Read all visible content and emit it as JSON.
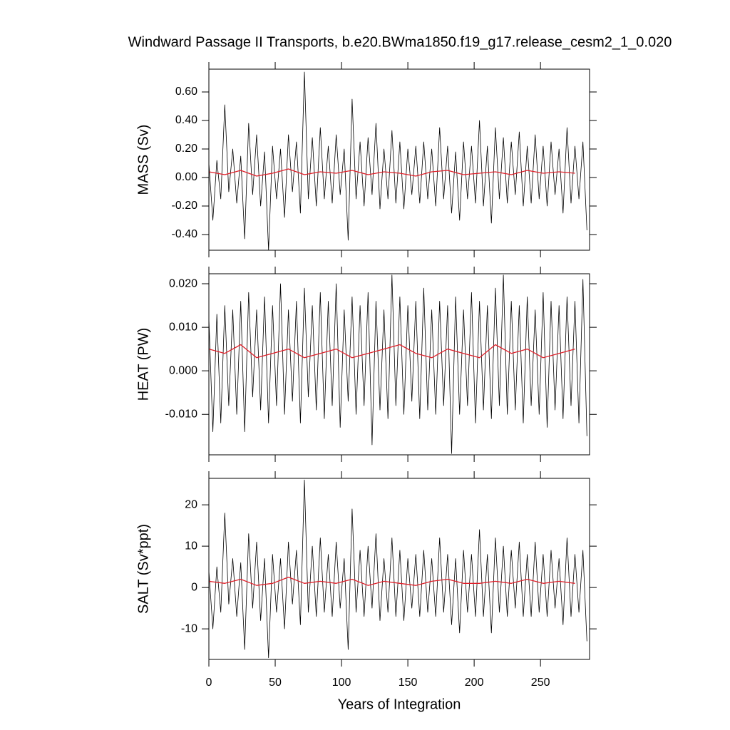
{
  "chart_data": [
    {
      "type": "line",
      "title": "Windward Passage II Transports, b.e20.BWma1850.f19_g17.release_cesm2_1_0.020",
      "ylabel": "MASS (Sv)",
      "xlim": [
        0,
        287
      ],
      "xticks": [
        0,
        50,
        100,
        150,
        200,
        250
      ],
      "ylim": [
        -0.51,
        0.76
      ],
      "yticks": [
        {
          "value": -0.4,
          "label": "-0.40"
        },
        {
          "value": -0.2,
          "label": "-0.20"
        },
        {
          "value": 0,
          "label": "0.00"
        },
        {
          "value": 0.2,
          "label": "0.20"
        },
        {
          "value": 0.4,
          "label": "0.40"
        },
        {
          "value": 0.6,
          "label": "0.60"
        }
      ],
      "series": [
        {
          "color": "#000000",
          "x": [
            0,
            3,
            6,
            9,
            12,
            15,
            18,
            21,
            24,
            27,
            30,
            33,
            36,
            39,
            42,
            45,
            48,
            51,
            54,
            57,
            60,
            63,
            66,
            69,
            72,
            75,
            78,
            81,
            84,
            87,
            90,
            93,
            96,
            99,
            102,
            105,
            108,
            111,
            114,
            117,
            120,
            123,
            126,
            129,
            132,
            135,
            138,
            141,
            144,
            147,
            150,
            153,
            156,
            159,
            162,
            165,
            168,
            171,
            174,
            177,
            180,
            183,
            186,
            189,
            192,
            195,
            198,
            201,
            204,
            207,
            210,
            213,
            216,
            219,
            222,
            225,
            228,
            231,
            234,
            237,
            240,
            243,
            246,
            249,
            252,
            255,
            258,
            261,
            264,
            267,
            270,
            273,
            276,
            279,
            282,
            285
          ],
          "values": [
            0.1,
            -0.3,
            0.12,
            -0.15,
            0.51,
            -0.1,
            0.2,
            -0.18,
            0.15,
            -0.43,
            0.38,
            -0.12,
            0.3,
            -0.2,
            0.18,
            -0.51,
            0.22,
            -0.15,
            0.2,
            -0.28,
            0.3,
            -0.1,
            0.25,
            -0.25,
            0.74,
            -0.15,
            0.28,
            -0.2,
            0.35,
            -0.15,
            0.22,
            -0.18,
            0.3,
            -0.12,
            0.2,
            -0.44,
            0.55,
            -0.15,
            0.25,
            -0.2,
            0.28,
            -0.12,
            0.38,
            -0.22,
            0.2,
            -0.15,
            0.33,
            -0.18,
            0.25,
            -0.22,
            0.2,
            -0.12,
            0.22,
            -0.18,
            0.25,
            -0.15,
            0.2,
            -0.2,
            0.35,
            -0.15,
            0.22,
            -0.25,
            0.18,
            -0.3,
            0.25,
            -0.15,
            0.22,
            -0.18,
            0.4,
            -0.2,
            0.22,
            -0.32,
            0.35,
            -0.15,
            0.28,
            -0.18,
            0.25,
            -0.12,
            0.32,
            -0.2,
            0.22,
            -0.18,
            0.3,
            -0.15,
            0.22,
            -0.2,
            0.25,
            -0.12,
            0.2,
            -0.25,
            0.35,
            -0.18,
            0.22,
            -0.15,
            0.25,
            -0.37
          ]
        },
        {
          "color": "#e0202a",
          "x": [
            0,
            12,
            24,
            36,
            48,
            60,
            72,
            84,
            96,
            108,
            120,
            132,
            144,
            156,
            168,
            180,
            192,
            204,
            216,
            228,
            240,
            252,
            264,
            276
          ],
          "values": [
            0.04,
            0.02,
            0.05,
            0.01,
            0.03,
            0.06,
            0.02,
            0.04,
            0.03,
            0.05,
            0.02,
            0.04,
            0.03,
            0.01,
            0.04,
            0.05,
            0.02,
            0.03,
            0.04,
            0.02,
            0.05,
            0.03,
            0.04,
            0.03
          ]
        }
      ]
    },
    {
      "type": "line",
      "ylabel": "HEAT (PW)",
      "xlim": [
        0,
        287
      ],
      "xticks": [
        0,
        50,
        100,
        150,
        200,
        250
      ],
      "ylim": [
        -0.0193,
        0.0223
      ],
      "yticks": [
        {
          "value": -0.01,
          "label": "-0.010"
        },
        {
          "value": 0,
          "label": "0.000"
        },
        {
          "value": 0.01,
          "label": "0.010"
        },
        {
          "value": 0.02,
          "label": "0.020"
        }
      ],
      "series": [
        {
          "color": "#000000",
          "x": [
            0,
            3,
            6,
            9,
            12,
            15,
            18,
            21,
            24,
            27,
            30,
            33,
            36,
            39,
            42,
            45,
            48,
            51,
            54,
            57,
            60,
            63,
            66,
            69,
            72,
            75,
            78,
            81,
            84,
            87,
            90,
            93,
            96,
            99,
            102,
            105,
            108,
            111,
            114,
            117,
            120,
            123,
            126,
            129,
            132,
            135,
            138,
            141,
            144,
            147,
            150,
            153,
            156,
            159,
            162,
            165,
            168,
            171,
            174,
            177,
            180,
            183,
            186,
            189,
            192,
            195,
            198,
            201,
            204,
            207,
            210,
            213,
            216,
            219,
            222,
            225,
            228,
            231,
            234,
            237,
            240,
            243,
            246,
            249,
            252,
            255,
            258,
            261,
            264,
            267,
            270,
            273,
            276,
            279,
            282,
            285
          ],
          "values": [
            0.012,
            -0.014,
            0.013,
            -0.012,
            0.015,
            -0.008,
            0.014,
            -0.01,
            0.016,
            -0.014,
            0.018,
            -0.006,
            0.014,
            -0.009,
            0.017,
            -0.012,
            0.015,
            -0.008,
            0.02,
            -0.01,
            0.014,
            -0.007,
            0.016,
            -0.012,
            0.019,
            -0.006,
            0.015,
            -0.009,
            0.018,
            -0.011,
            0.016,
            -0.008,
            0.02,
            -0.013,
            0.014,
            -0.007,
            0.017,
            -0.01,
            0.015,
            -0.008,
            0.018,
            -0.017,
            0.016,
            -0.009,
            0.014,
            -0.011,
            0.022,
            -0.008,
            0.017,
            -0.01,
            0.015,
            -0.007,
            0.016,
            -0.011,
            0.019,
            -0.009,
            0.014,
            -0.01,
            0.016,
            -0.008,
            0.015,
            -0.019,
            0.017,
            -0.01,
            0.014,
            -0.008,
            0.018,
            -0.012,
            0.016,
            -0.009,
            0.015,
            -0.011,
            0.019,
            -0.008,
            0.022,
            -0.01,
            0.016,
            -0.009,
            0.015,
            -0.012,
            0.017,
            -0.008,
            0.014,
            -0.01,
            0.018,
            -0.013,
            0.016,
            -0.009,
            0.015,
            -0.011,
            0.017,
            -0.008,
            0.016,
            -0.012,
            0.021,
            -0.015
          ]
        },
        {
          "color": "#e0202a",
          "x": [
            0,
            12,
            24,
            36,
            48,
            60,
            72,
            84,
            96,
            108,
            120,
            132,
            144,
            156,
            168,
            180,
            192,
            204,
            216,
            228,
            240,
            252,
            264,
            276
          ],
          "values": [
            0.005,
            0.004,
            0.006,
            0.003,
            0.004,
            0.005,
            0.003,
            0.004,
            0.005,
            0.003,
            0.004,
            0.005,
            0.006,
            0.004,
            0.003,
            0.005,
            0.004,
            0.003,
            0.006,
            0.004,
            0.005,
            0.003,
            0.004,
            0.005
          ]
        }
      ]
    },
    {
      "type": "line",
      "ylabel": "SALT (Sv*ppt)",
      "xlabel": "Years of Integration",
      "xlim": [
        0,
        287
      ],
      "xticks": [
        0,
        50,
        100,
        150,
        200,
        250
      ],
      "ylim": [
        -17.4,
        26.4
      ],
      "yticks": [
        -10,
        0,
        10,
        20
      ],
      "series": [
        {
          "color": "#000000",
          "x": [
            0,
            3,
            6,
            9,
            12,
            15,
            18,
            21,
            24,
            27,
            30,
            33,
            36,
            39,
            42,
            45,
            48,
            51,
            54,
            57,
            60,
            63,
            66,
            69,
            72,
            75,
            78,
            81,
            84,
            87,
            90,
            93,
            96,
            99,
            102,
            105,
            108,
            111,
            114,
            117,
            120,
            123,
            126,
            129,
            132,
            135,
            138,
            141,
            144,
            147,
            150,
            153,
            156,
            159,
            162,
            165,
            168,
            171,
            174,
            177,
            180,
            183,
            186,
            189,
            192,
            195,
            198,
            201,
            204,
            207,
            210,
            213,
            216,
            219,
            222,
            225,
            228,
            231,
            234,
            237,
            240,
            243,
            246,
            249,
            252,
            255,
            258,
            261,
            264,
            267,
            270,
            273,
            276,
            279,
            282,
            285
          ],
          "values": [
            4,
            -10,
            5,
            -6,
            18,
            -4,
            7,
            -7,
            6,
            -15,
            13,
            -5,
            11,
            -8,
            7,
            -17,
            8,
            -6,
            7,
            -10,
            11,
            -4,
            9,
            -9,
            26,
            -6,
            10,
            -7,
            12,
            -6,
            8,
            -7,
            11,
            -5,
            7,
            -15,
            19,
            -6,
            9,
            -7,
            10,
            -5,
            13,
            -8,
            7,
            -6,
            12,
            -7,
            9,
            -8,
            7,
            -5,
            8,
            -7,
            9,
            -6,
            7,
            -7,
            12,
            -6,
            8,
            -9,
            7,
            -11,
            9,
            -6,
            8,
            -7,
            14,
            -7,
            8,
            -11,
            12,
            -6,
            10,
            -7,
            9,
            -5,
            11,
            -7,
            8,
            -7,
            11,
            -6,
            8,
            -7,
            9,
            -5,
            7,
            -9,
            12,
            -7,
            8,
            -6,
            9,
            -13
          ]
        },
        {
          "color": "#e0202a",
          "x": [
            0,
            12,
            24,
            36,
            48,
            60,
            72,
            84,
            96,
            108,
            120,
            132,
            144,
            156,
            168,
            180,
            192,
            204,
            216,
            228,
            240,
            252,
            264,
            276
          ],
          "values": [
            1.5,
            1,
            2,
            0.5,
            1,
            2.5,
            1,
            1.5,
            1,
            2,
            0.5,
            1.5,
            1,
            0.5,
            1.5,
            2,
            1,
            1,
            1.5,
            1,
            2,
            1,
            1.5,
            1
          ]
        }
      ]
    }
  ]
}
